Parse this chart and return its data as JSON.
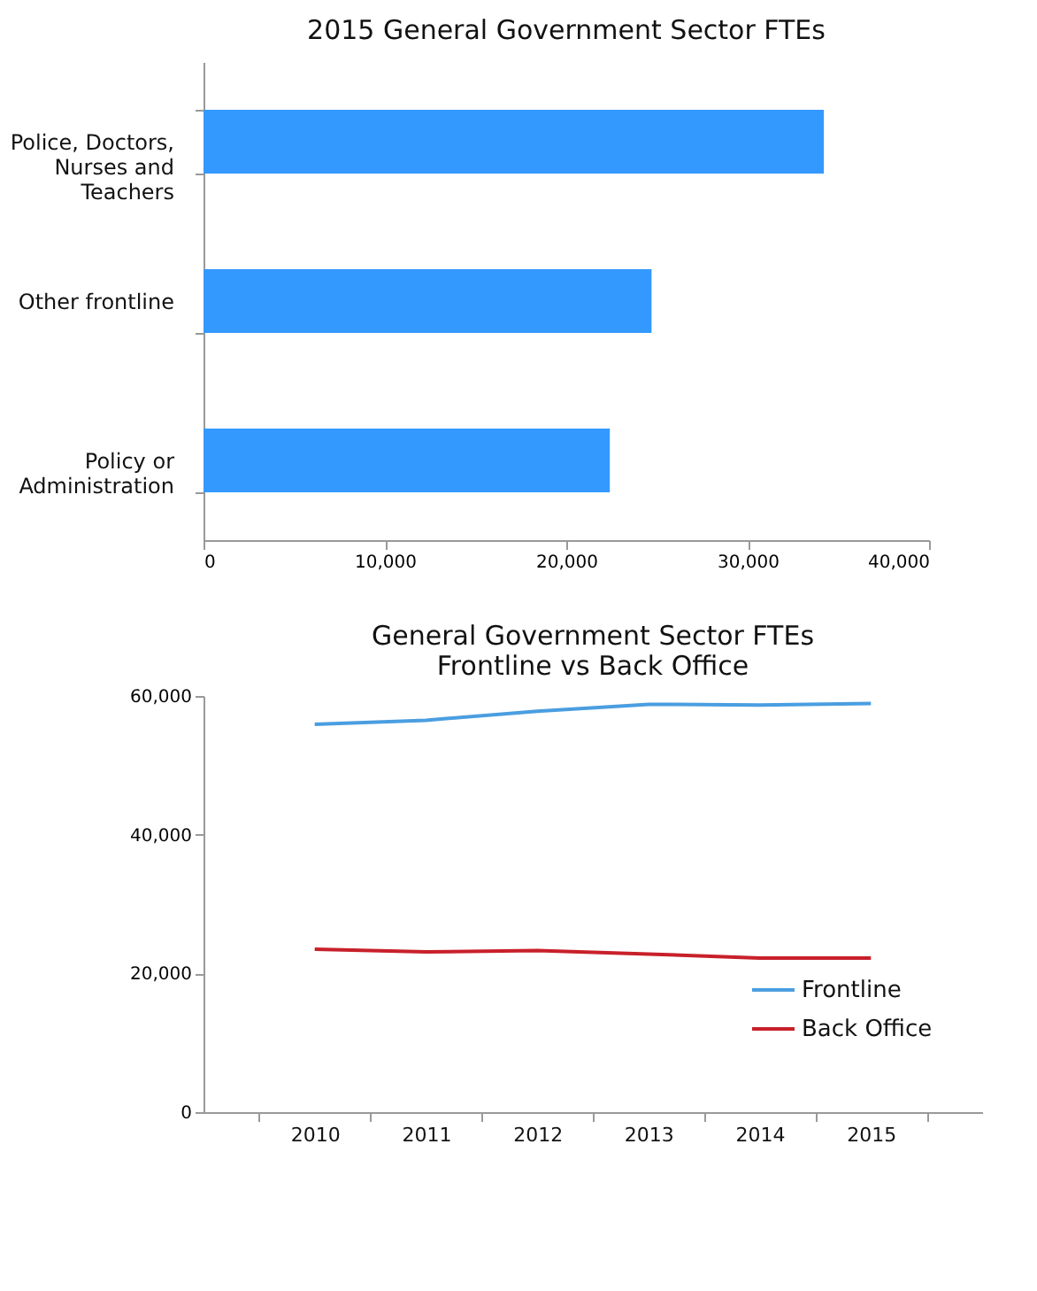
{
  "chart_data": [
    {
      "type": "bar",
      "orientation": "horizontal",
      "title": "2015 General Government Sector FTEs",
      "categories": [
        "Police, Doctors, Nurses and Teachers",
        "Other frontline",
        "Policy or Administration"
      ],
      "values": [
        34200,
        24700,
        22400
      ],
      "color": "#3399ff",
      "xlim": [
        0,
        40000
      ],
      "xticks": [
        {
          "value": 0,
          "label": "0"
        },
        {
          "value": 10000,
          "label": "10,000"
        },
        {
          "value": 20000,
          "label": "20,000"
        },
        {
          "value": 30000,
          "label": "30,000"
        },
        {
          "value": 40000,
          "label": "40,000"
        }
      ],
      "grid": false
    },
    {
      "type": "line",
      "title": "General Government Sector FTEs\nFrontline vs Back Office",
      "categories": [
        "2010",
        "2011",
        "2012",
        "2013",
        "2014",
        "2015"
      ],
      "series": [
        {
          "name": "Frontline",
          "color": "#4a9ee0",
          "values": [
            55900,
            56500,
            57800,
            58800,
            58700,
            58900
          ]
        },
        {
          "name": "Back Office",
          "color": "#c8202a",
          "values": [
            23500,
            23100,
            23300,
            22800,
            22200,
            22200
          ]
        }
      ],
      "ylim": [
        0,
        60000
      ],
      "yticks": [
        {
          "value": 0,
          "label": "0"
        },
        {
          "value": 20000,
          "label": "20,000"
        },
        {
          "value": 40000,
          "label": "40,000"
        },
        {
          "value": 60000,
          "label": "60,000"
        }
      ],
      "legend": "bottom right",
      "grid": false,
      "marker": "none",
      "line_style": "solid"
    }
  ]
}
